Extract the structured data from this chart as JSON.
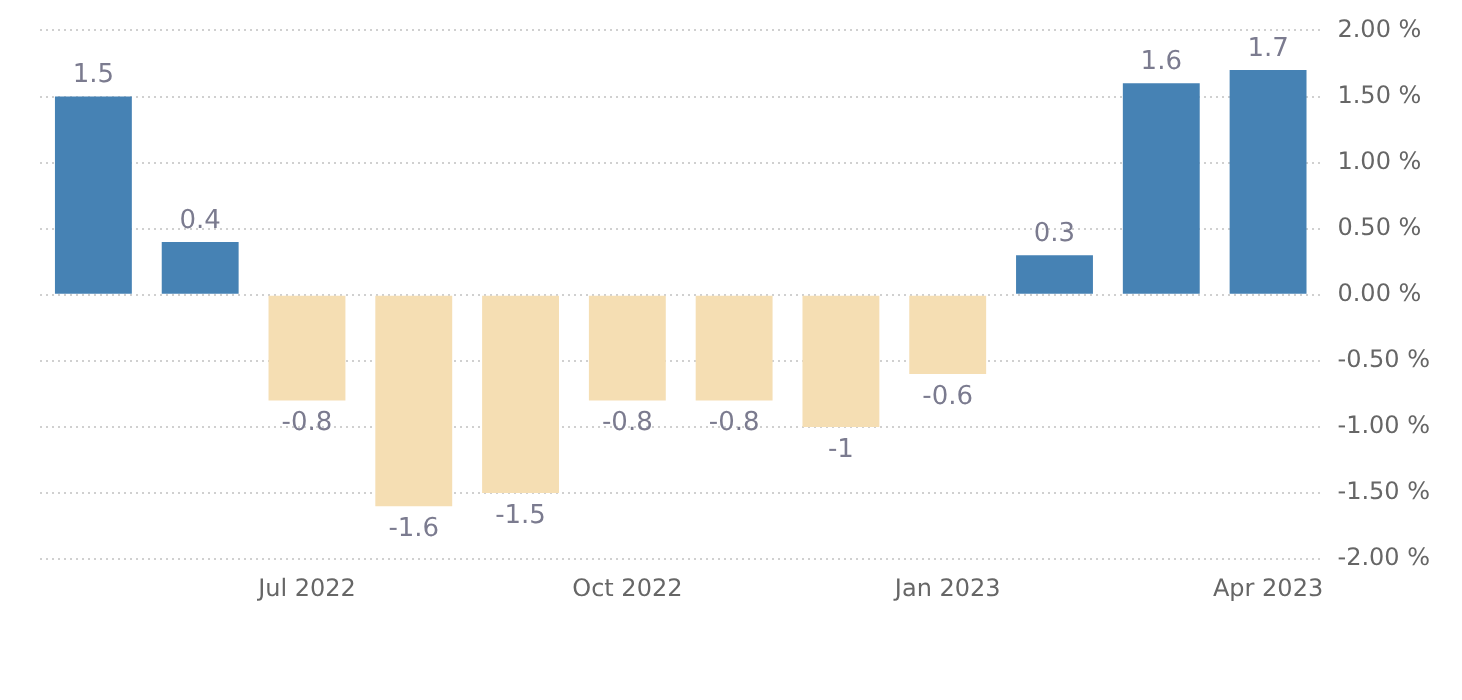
{
  "chart_data": {
    "type": "bar",
    "categories": [
      null,
      null,
      "Jul 2022",
      null,
      null,
      "Oct 2022",
      null,
      null,
      "Jan 2023",
      null,
      null,
      "Apr 2023"
    ],
    "values": [
      1.5,
      0.4,
      -0.8,
      -1.6,
      -1.5,
      -0.8,
      -0.8,
      -1,
      -0.6,
      0.3,
      1.6,
      1.7
    ],
    "colors": [
      "#4682b4",
      "#4682b4",
      "#f5deb3",
      "#f5deb3",
      "#f5deb3",
      "#f5deb3",
      "#f5deb3",
      "#f5deb3",
      "#f5deb3",
      "#4682b4",
      "#4682b4",
      "#4682b4"
    ],
    "ylim": [
      -2,
      2
    ],
    "yticks": [
      {
        "value": -2,
        "label": "-2.00 %"
      },
      {
        "value": -1.5,
        "label": "-1.50 %"
      },
      {
        "value": -1,
        "label": "-1.00 %"
      },
      {
        "value": -0.5,
        "label": "-0.50 %"
      },
      {
        "value": 0,
        "label": "0.00 %"
      },
      {
        "value": 0.5,
        "label": "0.50 %"
      },
      {
        "value": 1,
        "label": "1.00 %"
      },
      {
        "value": 1.5,
        "label": "1.50 %"
      },
      {
        "value": 2,
        "label": "2.00 %"
      }
    ],
    "grid": "y",
    "legend": false,
    "data_labels": true
  }
}
